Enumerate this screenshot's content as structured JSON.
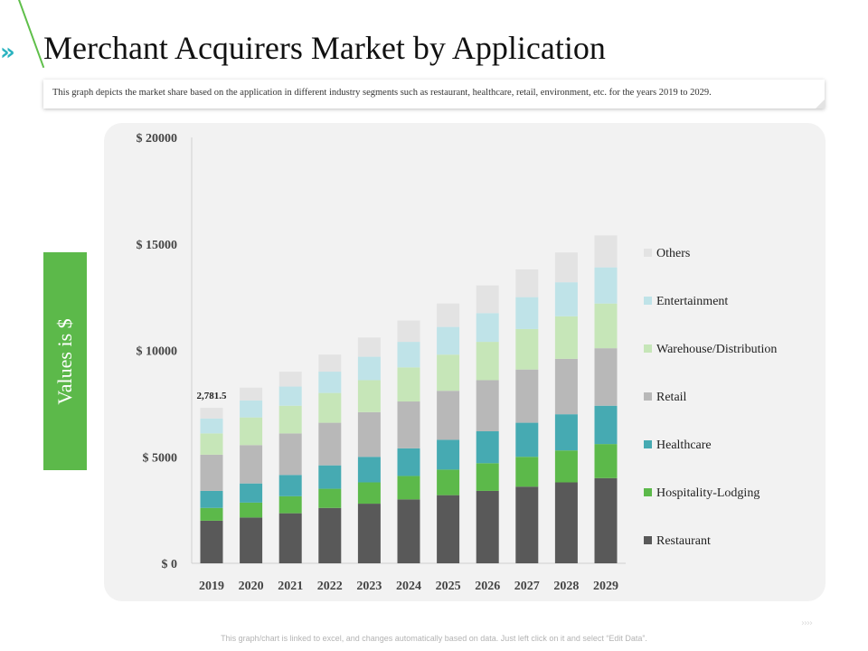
{
  "slide": {
    "title": "Merchant Acquirers Market by Application",
    "description": "This graph depicts the market share based on the application in different industry segments such as restaurant, healthcare, retail, environment, etc. for the years 2019 to 2029.",
    "y_axis_box_label": "Values is $",
    "footer": "This graph/chart is linked to excel, and changes automatically based on data. Just left click on it and select “Edit Data”.",
    "chevron_glyph": "»",
    "next_arrows": "››››"
  },
  "colors": {
    "accent_green": "#5cb94a",
    "accent_teal": "#2bb3c0",
    "panel_bg": "#f2f2f2"
  },
  "chart_data": {
    "type": "bar",
    "stacked": true,
    "categories": [
      "2019",
      "2020",
      "2021",
      "2022",
      "2023",
      "2024",
      "2025",
      "2026",
      "2027",
      "2028",
      "2029"
    ],
    "ylim": [
      0,
      20000
    ],
    "yticks": [
      0,
      5000,
      10000,
      15000,
      20000
    ],
    "ytick_labels": [
      "$ 0",
      "$ 5000",
      "$ 10000",
      "$ 15000",
      "$ 20000"
    ],
    "legend_position": "right",
    "grid": false,
    "annotation": {
      "category": "2019",
      "text": "2,781.5"
    },
    "series": [
      {
        "name": "Restaurant",
        "color": "#595959",
        "values": [
          2000,
          2150,
          2350,
          2600,
          2800,
          3000,
          3200,
          3400,
          3600,
          3800,
          4000
        ]
      },
      {
        "name": "Hospitality-Lodging",
        "color": "#5cb94a",
        "values": [
          600,
          700,
          800,
          900,
          1000,
          1100,
          1200,
          1300,
          1400,
          1500,
          1600
        ]
      },
      {
        "name": "Healthcare",
        "color": "#46aab2",
        "values": [
          800,
          900,
          1000,
          1100,
          1200,
          1300,
          1400,
          1500,
          1600,
          1700,
          1800
        ]
      },
      {
        "name": "Retail",
        "color": "#b8b8b8",
        "values": [
          1700,
          1800,
          1950,
          2000,
          2100,
          2200,
          2300,
          2400,
          2500,
          2600,
          2700
        ]
      },
      {
        "name": "Warehouse/Distribution",
        "color": "#c6e6b8",
        "values": [
          1000,
          1300,
          1300,
          1400,
          1500,
          1600,
          1700,
          1800,
          1900,
          2000,
          2100
        ]
      },
      {
        "name": "Entertainment",
        "color": "#bfe3e8",
        "values": [
          700,
          800,
          900,
          1000,
          1100,
          1200,
          1300,
          1350,
          1500,
          1600,
          1700
        ]
      },
      {
        "name": "Others",
        "color": "#e3e3e3",
        "values": [
          500,
          600,
          700,
          800,
          900,
          1000,
          1100,
          1300,
          1300,
          1400,
          1500
        ]
      }
    ]
  }
}
